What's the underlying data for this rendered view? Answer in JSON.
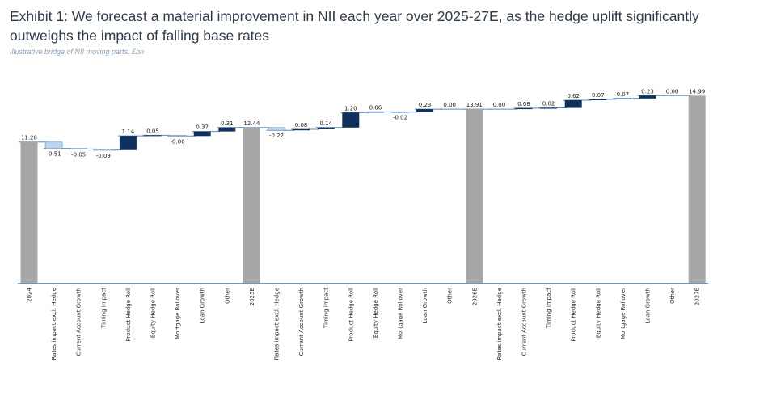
{
  "header": {
    "title": "Exhibit 1: We forecast a material improvement in NII each year over 2025-27E, as the hedge uplift significantly outweighs the impact of falling base rates",
    "subtitle": "Illustrative bridge of NII moving parts, £bn"
  },
  "colors": {
    "total": "#a6a6a6",
    "increase": "#10305c",
    "decrease": "#bcd6ee",
    "connector": "#5a88b8",
    "zero_line": "#6c97c4"
  },
  "chart_data": {
    "type": "bar",
    "subtype": "waterfall",
    "title": "Exhibit 1: We forecast a material improvement in NII each year over 2025-27E, as the hedge uplift significantly outweighs the impact of falling base rates",
    "subtitle": "Illustrative bridge of NII moving parts, £bn",
    "xlabel": "",
    "ylabel": "",
    "ylim": [
      0,
      15.1
    ],
    "grid": false,
    "categories": [
      "2024",
      "Rates impact excl. Hedge",
      "Current Account Growth",
      "Timing impact",
      "Product Hedge Roll",
      "Equity Hedge Roll",
      "Mortgage Rollover",
      "Loan Growth",
      "Other",
      "2025E",
      "Rates impact excl. Hedge",
      "Current Account Growth",
      "Timing impact",
      "Product Hedge Roll",
      "Equity Hedge Roll",
      "Mortgage Rollover",
      "Loan Growth",
      "Other",
      "2026E",
      "Rates impact excl. Hedge",
      "Current Account Growth",
      "Timing impact",
      "Product Hedge Roll",
      "Equity Hedge Roll",
      "Mortgage Rollover",
      "Loan Growth",
      "Other",
      "2027E"
    ],
    "kinds": [
      "total",
      "delta",
      "delta",
      "delta",
      "delta",
      "delta",
      "delta",
      "delta",
      "delta",
      "total",
      "delta",
      "delta",
      "delta",
      "delta",
      "delta",
      "delta",
      "delta",
      "delta",
      "total",
      "delta",
      "delta",
      "delta",
      "delta",
      "delta",
      "delta",
      "delta",
      "delta",
      "total"
    ],
    "values": [
      11.28,
      -0.51,
      -0.05,
      -0.09,
      1.14,
      0.05,
      -0.06,
      0.37,
      0.31,
      12.44,
      -0.22,
      0.08,
      0.14,
      1.2,
      0.06,
      -0.02,
      0.23,
      0.0,
      13.91,
      0.0,
      0.08,
      0.02,
      0.62,
      0.07,
      0.07,
      0.23,
      0.0,
      14.99
    ],
    "value_labels": [
      "11.28",
      "-0.51",
      "-0.05",
      "-0.09",
      "1.14",
      "0.05",
      "-0.06",
      "0.37",
      "0.31",
      "12.44",
      "-0.22",
      "0.08",
      "0.14",
      "1.20",
      "0.06",
      "-0.02",
      "0.23",
      "0.00",
      "13.91",
      "0.00",
      "0.08",
      "0.02",
      "0.62",
      "0.07",
      "0.07",
      "0.23",
      "0.00",
      "14.99"
    ]
  }
}
